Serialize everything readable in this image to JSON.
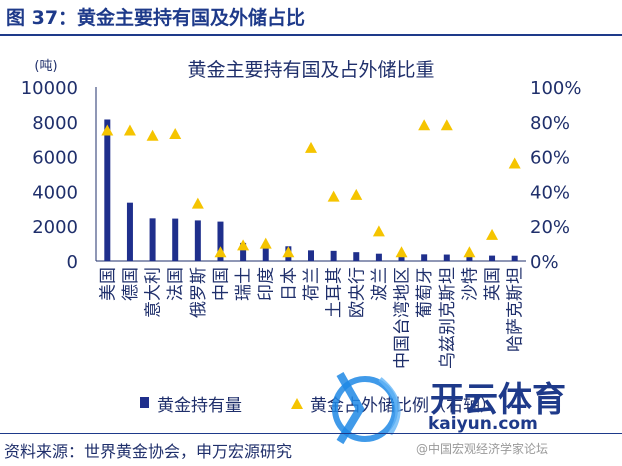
{
  "figure_title": "图 37：黄金主要持有国及外储占比",
  "source": "资料来源：世界黄金协会，申万宏源研究",
  "watermark": {
    "brand": "开云体育",
    "url": "kaiyun.com",
    "sub": "@中国宏观经济学家论坛"
  },
  "colors": {
    "bar": "#1f2f8c",
    "marker": "#f5c400",
    "text": "#1f2f6b"
  },
  "chart_data": {
    "type": "bar",
    "title": "黄金主要持有国及占外储比重",
    "ylabel_left_unit": "(吨)",
    "ylim": [
      0,
      10000
    ],
    "yticks": [
      "0",
      "2000",
      "4000",
      "6000",
      "8000",
      "10000"
    ],
    "y2lim": [
      0,
      100
    ],
    "y2ticks": [
      "0%",
      "20%",
      "40%",
      "60%",
      "80%",
      "100%"
    ],
    "categories": [
      "美国",
      "德国",
      "意大利",
      "法国",
      "俄罗斯",
      "中国",
      "瑞士",
      "印度",
      "日本",
      "荷兰",
      "土耳其",
      "欧央行",
      "波兰",
      "中国台湾地区",
      "葡萄牙",
      "乌兹别克斯坦",
      "沙特",
      "英国",
      "哈萨克斯坦"
    ],
    "series": [
      {
        "name": "黄金持有量",
        "type": "bar",
        "axis": "left",
        "values": [
          8133,
          3352,
          2452,
          2437,
          2333,
          2264,
          1040,
          840,
          846,
          612,
          584,
          507,
          420,
          424,
          383,
          371,
          323,
          310,
          304
        ]
      },
      {
        "name": "黄金占外储比例（右轴）",
        "type": "scatter",
        "axis": "right",
        "values": [
          75,
          75,
          72,
          73,
          33,
          5,
          9,
          10,
          5,
          65,
          37,
          38,
          17,
          5,
          78,
          78,
          5,
          15,
          56
        ]
      }
    ],
    "legend_position": "bottom"
  }
}
